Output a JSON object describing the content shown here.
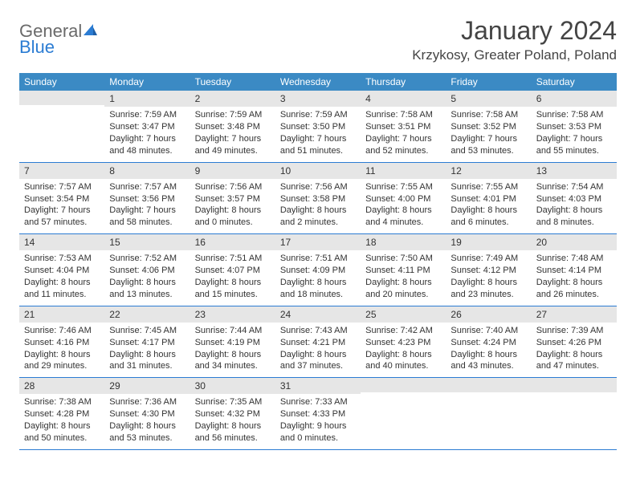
{
  "logo": {
    "word1": "General",
    "word2": "Blue"
  },
  "title": "January 2024",
  "location": "Krzykosy, Greater Poland, Poland",
  "colors": {
    "header_bg": "#3b8ac4",
    "row_divider": "#2b7cd3",
    "daynum_bg": "#e6e6e6",
    "logo_gray": "#6a6a6a",
    "logo_blue": "#2b7cd3"
  },
  "day_names": [
    "Sunday",
    "Monday",
    "Tuesday",
    "Wednesday",
    "Thursday",
    "Friday",
    "Saturday"
  ],
  "weeks": [
    [
      {
        "n": "",
        "sunrise": "",
        "sunset": "",
        "daylight": ""
      },
      {
        "n": "1",
        "sunrise": "Sunrise: 7:59 AM",
        "sunset": "Sunset: 3:47 PM",
        "daylight": "Daylight: 7 hours and 48 minutes."
      },
      {
        "n": "2",
        "sunrise": "Sunrise: 7:59 AM",
        "sunset": "Sunset: 3:48 PM",
        "daylight": "Daylight: 7 hours and 49 minutes."
      },
      {
        "n": "3",
        "sunrise": "Sunrise: 7:59 AM",
        "sunset": "Sunset: 3:50 PM",
        "daylight": "Daylight: 7 hours and 51 minutes."
      },
      {
        "n": "4",
        "sunrise": "Sunrise: 7:58 AM",
        "sunset": "Sunset: 3:51 PM",
        "daylight": "Daylight: 7 hours and 52 minutes."
      },
      {
        "n": "5",
        "sunrise": "Sunrise: 7:58 AM",
        "sunset": "Sunset: 3:52 PM",
        "daylight": "Daylight: 7 hours and 53 minutes."
      },
      {
        "n": "6",
        "sunrise": "Sunrise: 7:58 AM",
        "sunset": "Sunset: 3:53 PM",
        "daylight": "Daylight: 7 hours and 55 minutes."
      }
    ],
    [
      {
        "n": "7",
        "sunrise": "Sunrise: 7:57 AM",
        "sunset": "Sunset: 3:54 PM",
        "daylight": "Daylight: 7 hours and 57 minutes."
      },
      {
        "n": "8",
        "sunrise": "Sunrise: 7:57 AM",
        "sunset": "Sunset: 3:56 PM",
        "daylight": "Daylight: 7 hours and 58 minutes."
      },
      {
        "n": "9",
        "sunrise": "Sunrise: 7:56 AM",
        "sunset": "Sunset: 3:57 PM",
        "daylight": "Daylight: 8 hours and 0 minutes."
      },
      {
        "n": "10",
        "sunrise": "Sunrise: 7:56 AM",
        "sunset": "Sunset: 3:58 PM",
        "daylight": "Daylight: 8 hours and 2 minutes."
      },
      {
        "n": "11",
        "sunrise": "Sunrise: 7:55 AM",
        "sunset": "Sunset: 4:00 PM",
        "daylight": "Daylight: 8 hours and 4 minutes."
      },
      {
        "n": "12",
        "sunrise": "Sunrise: 7:55 AM",
        "sunset": "Sunset: 4:01 PM",
        "daylight": "Daylight: 8 hours and 6 minutes."
      },
      {
        "n": "13",
        "sunrise": "Sunrise: 7:54 AM",
        "sunset": "Sunset: 4:03 PM",
        "daylight": "Daylight: 8 hours and 8 minutes."
      }
    ],
    [
      {
        "n": "14",
        "sunrise": "Sunrise: 7:53 AM",
        "sunset": "Sunset: 4:04 PM",
        "daylight": "Daylight: 8 hours and 11 minutes."
      },
      {
        "n": "15",
        "sunrise": "Sunrise: 7:52 AM",
        "sunset": "Sunset: 4:06 PM",
        "daylight": "Daylight: 8 hours and 13 minutes."
      },
      {
        "n": "16",
        "sunrise": "Sunrise: 7:51 AM",
        "sunset": "Sunset: 4:07 PM",
        "daylight": "Daylight: 8 hours and 15 minutes."
      },
      {
        "n": "17",
        "sunrise": "Sunrise: 7:51 AM",
        "sunset": "Sunset: 4:09 PM",
        "daylight": "Daylight: 8 hours and 18 minutes."
      },
      {
        "n": "18",
        "sunrise": "Sunrise: 7:50 AM",
        "sunset": "Sunset: 4:11 PM",
        "daylight": "Daylight: 8 hours and 20 minutes."
      },
      {
        "n": "19",
        "sunrise": "Sunrise: 7:49 AM",
        "sunset": "Sunset: 4:12 PM",
        "daylight": "Daylight: 8 hours and 23 minutes."
      },
      {
        "n": "20",
        "sunrise": "Sunrise: 7:48 AM",
        "sunset": "Sunset: 4:14 PM",
        "daylight": "Daylight: 8 hours and 26 minutes."
      }
    ],
    [
      {
        "n": "21",
        "sunrise": "Sunrise: 7:46 AM",
        "sunset": "Sunset: 4:16 PM",
        "daylight": "Daylight: 8 hours and 29 minutes."
      },
      {
        "n": "22",
        "sunrise": "Sunrise: 7:45 AM",
        "sunset": "Sunset: 4:17 PM",
        "daylight": "Daylight: 8 hours and 31 minutes."
      },
      {
        "n": "23",
        "sunrise": "Sunrise: 7:44 AM",
        "sunset": "Sunset: 4:19 PM",
        "daylight": "Daylight: 8 hours and 34 minutes."
      },
      {
        "n": "24",
        "sunrise": "Sunrise: 7:43 AM",
        "sunset": "Sunset: 4:21 PM",
        "daylight": "Daylight: 8 hours and 37 minutes."
      },
      {
        "n": "25",
        "sunrise": "Sunrise: 7:42 AM",
        "sunset": "Sunset: 4:23 PM",
        "daylight": "Daylight: 8 hours and 40 minutes."
      },
      {
        "n": "26",
        "sunrise": "Sunrise: 7:40 AM",
        "sunset": "Sunset: 4:24 PM",
        "daylight": "Daylight: 8 hours and 43 minutes."
      },
      {
        "n": "27",
        "sunrise": "Sunrise: 7:39 AM",
        "sunset": "Sunset: 4:26 PM",
        "daylight": "Daylight: 8 hours and 47 minutes."
      }
    ],
    [
      {
        "n": "28",
        "sunrise": "Sunrise: 7:38 AM",
        "sunset": "Sunset: 4:28 PM",
        "daylight": "Daylight: 8 hours and 50 minutes."
      },
      {
        "n": "29",
        "sunrise": "Sunrise: 7:36 AM",
        "sunset": "Sunset: 4:30 PM",
        "daylight": "Daylight: 8 hours and 53 minutes."
      },
      {
        "n": "30",
        "sunrise": "Sunrise: 7:35 AM",
        "sunset": "Sunset: 4:32 PM",
        "daylight": "Daylight: 8 hours and 56 minutes."
      },
      {
        "n": "31",
        "sunrise": "Sunrise: 7:33 AM",
        "sunset": "Sunset: 4:33 PM",
        "daylight": "Daylight: 9 hours and 0 minutes."
      },
      {
        "n": "",
        "sunrise": "",
        "sunset": "",
        "daylight": ""
      },
      {
        "n": "",
        "sunrise": "",
        "sunset": "",
        "daylight": ""
      },
      {
        "n": "",
        "sunrise": "",
        "sunset": "",
        "daylight": ""
      }
    ]
  ]
}
